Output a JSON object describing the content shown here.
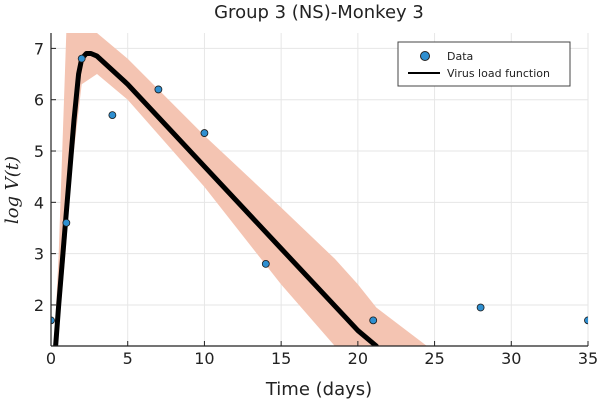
{
  "chart_data": {
    "type": "line",
    "title": "Group 3 (NS)-Monkey 3",
    "xlabel": "Time (days)",
    "ylabel": "log V(t)",
    "xlim": [
      0,
      35
    ],
    "ylim": [
      1.2,
      7.3
    ],
    "xticks": [
      0,
      5,
      10,
      15,
      20,
      25,
      30,
      35
    ],
    "yticks": [
      2,
      3,
      4,
      5,
      6,
      7
    ],
    "grid": true,
    "legend_position": "top-right",
    "colors": {
      "data_points": "#2f8fd0",
      "fit_line": "#000000",
      "band": "#f4c4b2"
    },
    "series": [
      {
        "name": "Data",
        "kind": "scatter",
        "x": [
          0,
          1,
          2,
          4,
          7,
          10,
          14,
          21,
          28,
          35
        ],
        "y": [
          1.7,
          3.6,
          6.8,
          5.7,
          6.2,
          5.35,
          2.8,
          1.7,
          1.95,
          1.7
        ]
      },
      {
        "name": "Virus load function",
        "kind": "line",
        "x": [
          0,
          0.5,
          1.0,
          1.5,
          1.8,
          2.0,
          2.3,
          2.6,
          3.0,
          5,
          10,
          15,
          20,
          21.2
        ],
        "y": [
          0,
          2.0,
          3.8,
          5.6,
          6.5,
          6.8,
          6.9,
          6.9,
          6.85,
          6.3,
          4.7,
          3.1,
          1.5,
          1.2
        ]
      }
    ],
    "confidence_band": {
      "x": [
        0,
        0.5,
        1.0,
        1.3,
        2.0,
        3.0,
        5,
        10,
        15,
        18.5,
        20,
        21.2,
        24.5
      ],
      "lower": [
        0,
        1.5,
        3.2,
        4.5,
        6.3,
        6.5,
        6.0,
        4.3,
        2.4,
        1.2,
        1.2,
        1.2,
        1.2
      ],
      "upper": [
        0,
        3.0,
        7.3,
        7.3,
        7.3,
        7.3,
        6.8,
        5.3,
        3.9,
        2.9,
        2.4,
        1.95,
        1.2
      ]
    }
  }
}
